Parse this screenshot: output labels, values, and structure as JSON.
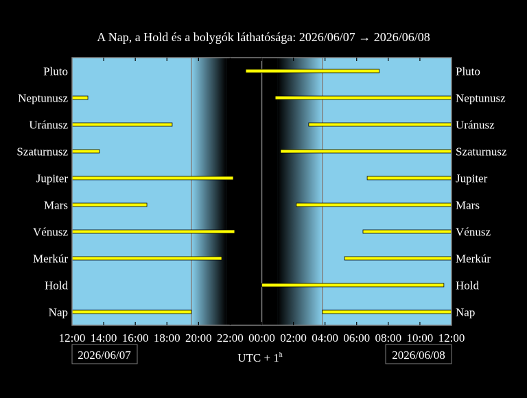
{
  "chart_data": {
    "type": "bar",
    "subtype": "timeline-horizontal",
    "title": "A Nap, a Hold és a bolygók láthatósága: 2026/06/07 → 2026/06/08",
    "xlabel": "UTC + 1",
    "xlabel_superscript": "h",
    "start_date_label": "2026/06/07",
    "end_date_label": "2026/06/08",
    "xlim": [
      "2026/06/07 12:00",
      "2026/06/08 12:00"
    ],
    "x_tick_labels": [
      "12:00",
      "14:00",
      "16:00",
      "18:00",
      "20:00",
      "22:00",
      "00:00",
      "02:00",
      "04:00",
      "06:00",
      "08:00",
      "10:00",
      "12:00"
    ],
    "colors": {
      "day": "#87ceeb",
      "night": "#000000",
      "bar": "#ffff00",
      "frame": "#808080"
    },
    "twilight": {
      "sunset": "2026/06/07 19:33",
      "dark_start": "2026/06/07 21:45",
      "dark_end": "2026/06/08 01:00",
      "sunrise": "2026/06/08 03:50"
    },
    "marker_lines": [
      "2026/06/07 19:33",
      "2026/06/08 00:00",
      "2026/06/08 03:50"
    ],
    "series": [
      {
        "name": "Pluto",
        "segments": [
          [
            "2026/06/07 22:59",
            "2026/06/08 07:26"
          ]
        ]
      },
      {
        "name": "Neptunusz",
        "segments": [
          [
            "2026/06/07 12:00",
            "2026/06/07 13:00"
          ],
          [
            "2026/06/08 00:51",
            "2026/06/08 12:00"
          ]
        ]
      },
      {
        "name": "Uránusz",
        "segments": [
          [
            "2026/06/07 12:00",
            "2026/06/07 18:20"
          ],
          [
            "2026/06/08 02:58",
            "2026/06/08 12:00"
          ]
        ]
      },
      {
        "name": "Szaturnusz",
        "segments": [
          [
            "2026/06/07 12:00",
            "2026/06/07 13:44"
          ],
          [
            "2026/06/08 01:11",
            "2026/06/08 12:00"
          ]
        ]
      },
      {
        "name": "Jupiter",
        "segments": [
          [
            "2026/06/07 12:00",
            "2026/06/07 22:12"
          ],
          [
            "2026/06/08 06:40",
            "2026/06/08 12:00"
          ]
        ]
      },
      {
        "name": "Mars",
        "segments": [
          [
            "2026/06/07 12:00",
            "2026/06/07 16:44"
          ],
          [
            "2026/06/08 02:11",
            "2026/06/08 12:00"
          ]
        ]
      },
      {
        "name": "Vénusz",
        "segments": [
          [
            "2026/06/07 12:00",
            "2026/06/07 22:17"
          ],
          [
            "2026/06/08 06:24",
            "2026/06/08 12:00"
          ]
        ]
      },
      {
        "name": "Merkúr",
        "segments": [
          [
            "2026/06/07 12:00",
            "2026/06/07 21:28"
          ],
          [
            "2026/06/08 05:14",
            "2026/06/08 12:00"
          ]
        ]
      },
      {
        "name": "Hold",
        "segments": [
          [
            "2026/06/08 00:00",
            "2026/06/08 11:31"
          ]
        ]
      },
      {
        "name": "Nap",
        "segments": [
          [
            "2026/06/07 12:00",
            "2026/06/07 19:33"
          ],
          [
            "2026/06/08 03:50",
            "2026/06/08 12:00"
          ]
        ]
      }
    ]
  }
}
